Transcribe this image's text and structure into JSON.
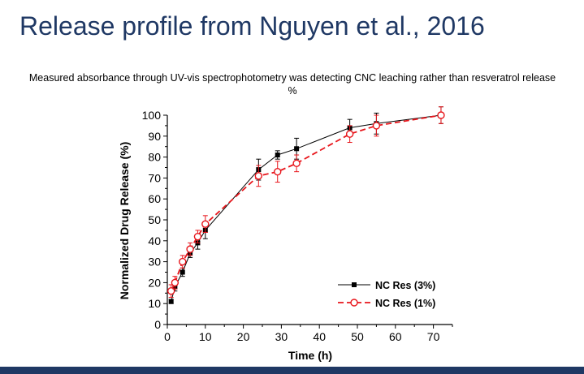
{
  "slide": {
    "title": "Release profile from Nguyen et al., 2016",
    "subtitle": "Measured absorbance through UV-vis spectrophotometry was detecting CNC leaching rather than resveratrol release %",
    "accent_color": "#1f3864"
  },
  "chart_data": {
    "type": "line",
    "xlabel": "Time (h)",
    "ylabel": "Normalized Drug Release (%)",
    "xlim": [
      0,
      75
    ],
    "ylim": [
      0,
      100
    ],
    "xticks": [
      0,
      10,
      20,
      30,
      40,
      50,
      60,
      70
    ],
    "yticks": [
      0,
      10,
      20,
      30,
      40,
      50,
      60,
      70,
      80,
      90,
      100
    ],
    "legend_position": "bottom-right",
    "grid": false,
    "series": [
      {
        "name": "NC Res (3%)",
        "color": "#000000",
        "marker": "filled-square",
        "line_style": "solid",
        "x": [
          1,
          2,
          4,
          6,
          8,
          10,
          24,
          29,
          34,
          48,
          55,
          72
        ],
        "y": [
          11,
          18,
          25,
          34,
          39,
          45,
          74,
          81,
          84,
          94,
          96,
          100
        ],
        "err": [
          1,
          2,
          2,
          2,
          3,
          4,
          5,
          2,
          5,
          4,
          5,
          4
        ]
      },
      {
        "name": "NC Res (1%)",
        "color": "#e8151b",
        "marker": "open-circle",
        "line_style": "dashed",
        "x": [
          1,
          2,
          4,
          6,
          8,
          10,
          24,
          29,
          34,
          48,
          55,
          72
        ],
        "y": [
          16,
          20,
          30,
          36,
          42,
          48,
          71,
          73,
          77,
          91,
          95,
          100
        ],
        "err": [
          3,
          3,
          3,
          3,
          3,
          4,
          5,
          5,
          4,
          4,
          5,
          4
        ]
      }
    ]
  }
}
